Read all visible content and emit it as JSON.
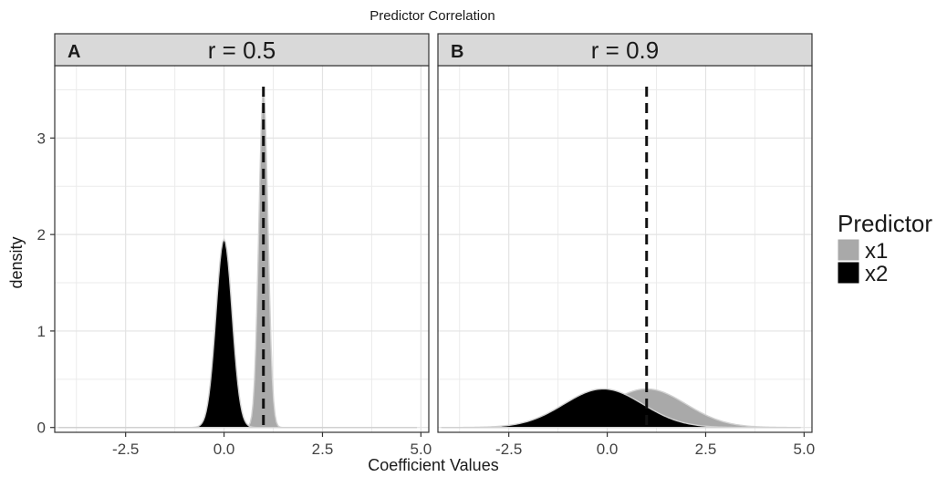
{
  "chart_data": {
    "type": "area",
    "title": "Predictor Correlation",
    "xlabel": "Coefficient Values",
    "ylabel": "density",
    "xlim": [
      -4.3,
      5.2
    ],
    "ylim": [
      -0.05,
      3.75
    ],
    "x_ticks": [
      -2.5,
      0.0,
      2.5,
      5.0
    ],
    "x_tick_labels": [
      "-2.5",
      "0.0",
      "2.5",
      "5.0"
    ],
    "y_ticks": [
      0,
      1,
      2,
      3
    ],
    "y_tick_labels": [
      "0",
      "1",
      "2",
      "3"
    ],
    "grid": true,
    "reference_line": {
      "x": 1.0,
      "style": "dashed"
    },
    "legend": {
      "title": "Predictor",
      "position": "right",
      "entries": [
        {
          "name": "x1",
          "color": "#a9a9a9"
        },
        {
          "name": "x2",
          "color": "#000000"
        }
      ]
    },
    "panels": [
      {
        "tag": "A",
        "strip_label": "r = 0.5",
        "x_range": [
          -4.2,
          4.9
        ],
        "series": [
          {
            "name": "x1",
            "color": "#a9a9a9",
            "mean": 1.0,
            "sd": 0.115,
            "peak": 3.5
          },
          {
            "name": "x2",
            "color": "#000000",
            "mean": 0.0,
            "sd": 0.205,
            "peak": 1.95
          }
        ]
      },
      {
        "tag": "B",
        "strip_label": "r = 0.9",
        "x_range": [
          -4.2,
          4.9
        ],
        "series": [
          {
            "name": "x1",
            "color": "#a9a9a9",
            "mean": 1.0,
            "sd": 1.0,
            "peak": 0.4
          },
          {
            "name": "x2",
            "color": "#000000",
            "mean": -0.1,
            "sd": 1.0,
            "peak": 0.4
          }
        ]
      }
    ]
  }
}
